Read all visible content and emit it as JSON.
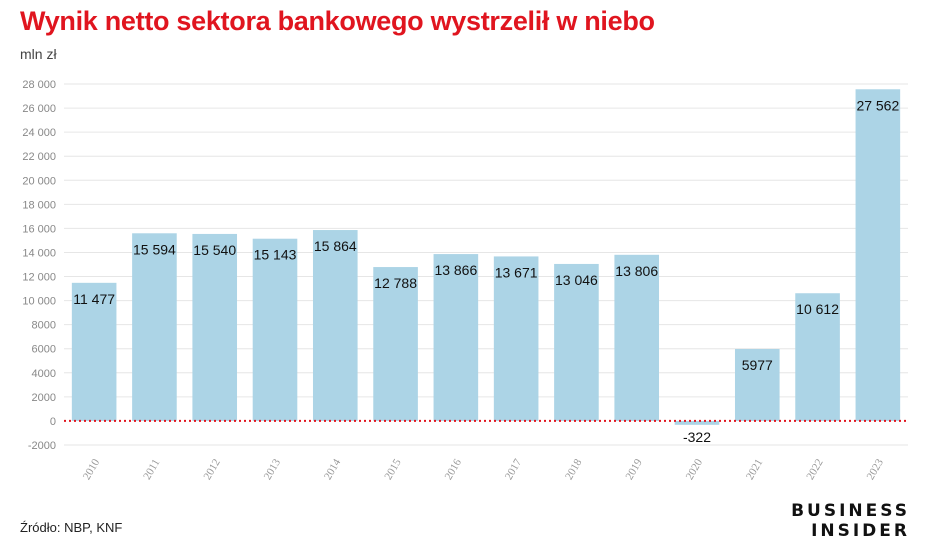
{
  "header": {
    "title": "Wynik netto sektora bankowego wystrzelił w niebo",
    "unit": "mln zł"
  },
  "footer": {
    "source": "Źródło: NBP, KNF",
    "brand_line1": "BUSINESS",
    "brand_line2": "INSIDER"
  },
  "colors": {
    "title": "#e0151f",
    "bar": "#acd4e6",
    "zero_line": "#e0151f",
    "grid": "#e6e6e6"
  },
  "chart_data": {
    "type": "bar",
    "title": "Wynik netto sektora bankowego wystrzelił w niebo",
    "ylabel": "mln zł",
    "xlabel": "",
    "categories": [
      "2010",
      "2011",
      "2012",
      "2013",
      "2014",
      "2015",
      "2016",
      "2017",
      "2018",
      "2019",
      "2020",
      "2021",
      "2022",
      "2023"
    ],
    "values": [
      11477,
      15594,
      15540,
      15143,
      15864,
      12788,
      13866,
      13671,
      13046,
      13806,
      -322,
      5977,
      10612,
      27562
    ],
    "data_labels": [
      "11 477",
      "15 594",
      "15 540",
      "15 143",
      "15 864",
      "12 788",
      "13 866",
      "13 671",
      "13 046",
      "13 806",
      "-322",
      "5977",
      "10 612",
      "27 562"
    ],
    "ylim": [
      -2000,
      28000
    ],
    "yticks": [
      -2000,
      0,
      2000,
      4000,
      6000,
      8000,
      10000,
      12000,
      14000,
      16000,
      18000,
      20000,
      22000,
      24000,
      26000,
      28000
    ],
    "ytick_labels": [
      "-2000",
      "0",
      "2000",
      "4000",
      "6000",
      "8000",
      "10 000",
      "12 000",
      "14 000",
      "16 000",
      "18 000",
      "20 000",
      "22 000",
      "24 000",
      "26 000",
      "28 000"
    ],
    "grid": true,
    "legend": "none"
  }
}
